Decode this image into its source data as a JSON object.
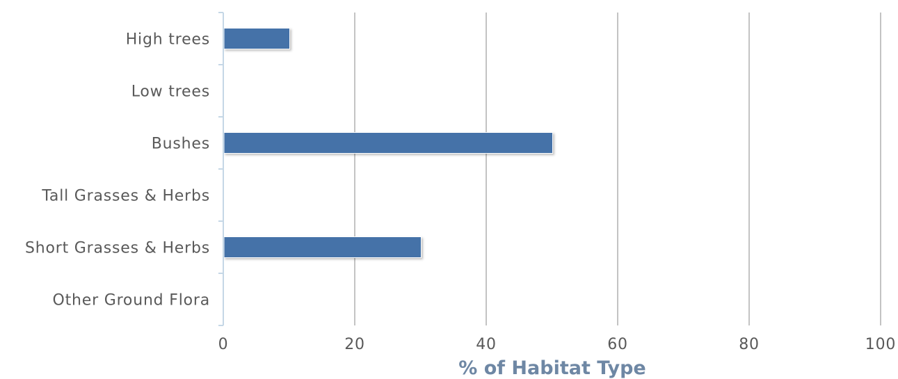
{
  "chart_data": {
    "type": "bar",
    "orientation": "horizontal",
    "categories": [
      "High trees",
      "Low trees",
      "Bushes",
      "Tall Grasses & Herbs",
      "Short Grasses & Herbs",
      "Other Ground Flora"
    ],
    "values": [
      10,
      0,
      50,
      0,
      30,
      0
    ],
    "xlabel": "% of Habitat Type",
    "ylabel": "",
    "xlim": [
      0,
      100
    ],
    "xticks": [
      0,
      20,
      40,
      60,
      80,
      100
    ],
    "grid": "vertical",
    "legend": "none",
    "colors": {
      "bar": "#4472a8",
      "gridline": "#c3c3c3",
      "axis": "#c5d7e6",
      "label_text": "#595959",
      "axis_title": "#6e87a4"
    }
  }
}
